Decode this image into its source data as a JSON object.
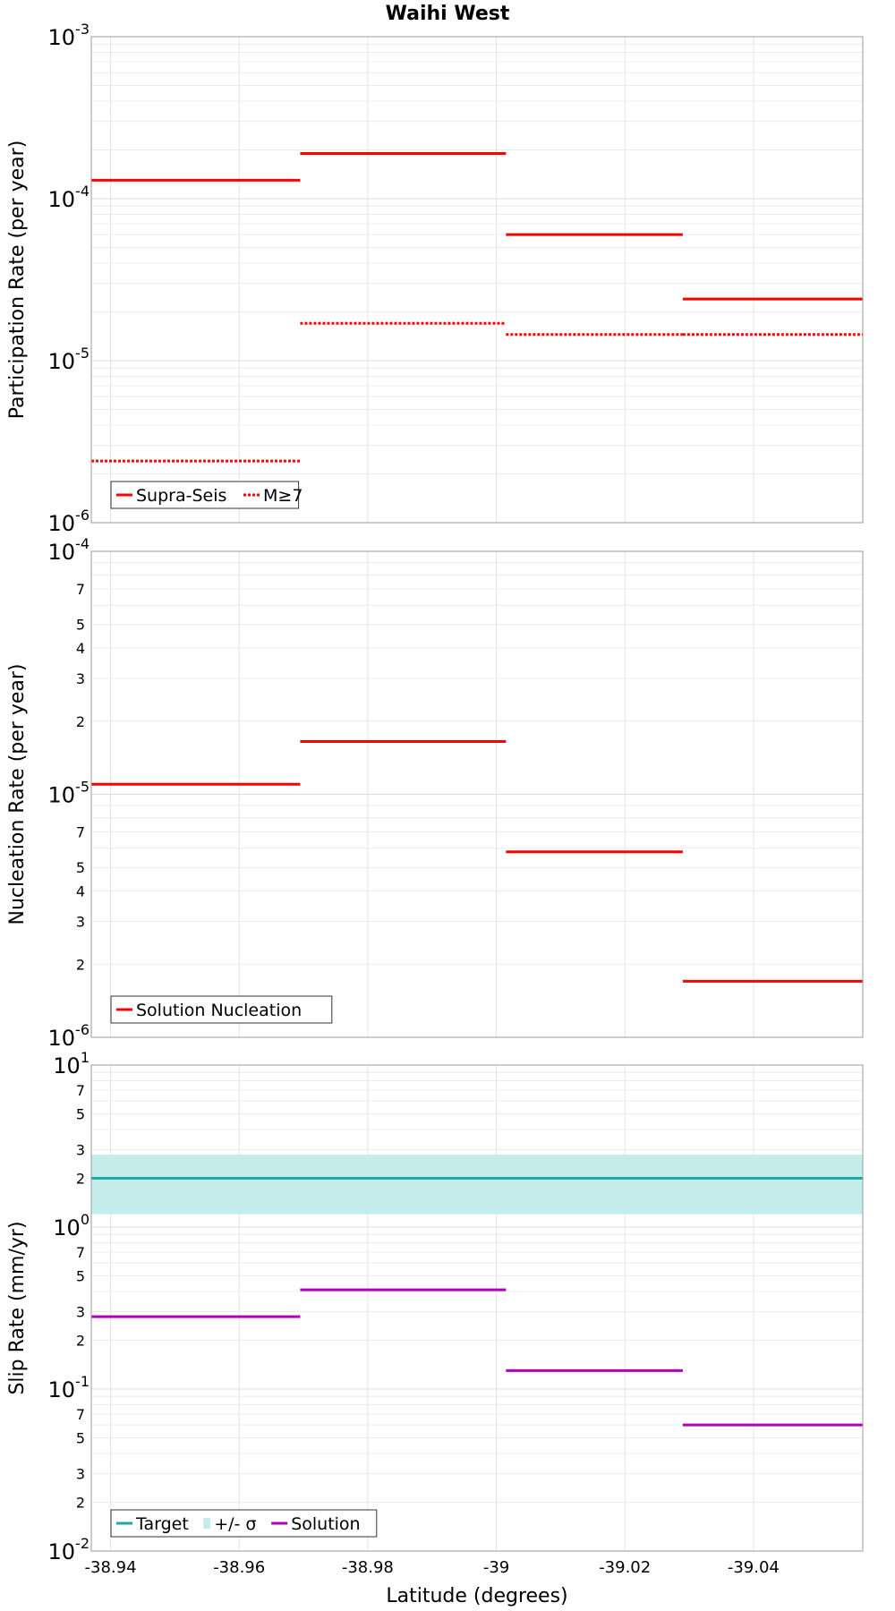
{
  "chart_data": {
    "title": "Waihi West",
    "xlabel": "Latitude (degrees)",
    "xlim": [
      -38.937,
      -39.057
    ],
    "x_ticks": [
      -38.94,
      -38.96,
      -38.98,
      -39.0,
      -39.02,
      -39.04
    ],
    "x_tick_labels": [
      "-38.94",
      "-38.96",
      "-38.98",
      "-39",
      "-39.02",
      "-39.04"
    ],
    "segment_edges": [
      -38.937,
      -38.9695,
      -39.0015,
      -39.029,
      -39.057
    ],
    "panels": [
      {
        "type": "line",
        "ylabel": "Participation Rate (per year)",
        "yscale": "log",
        "ylim": [
          1e-06,
          0.001
        ],
        "major_ticks": [
          {
            "value": 0.001,
            "base": "10",
            "exp": "-3"
          },
          {
            "value": 0.0001,
            "base": "10",
            "exp": "-4"
          },
          {
            "value": 1e-05,
            "base": "10",
            "exp": "-5"
          },
          {
            "value": 1e-06,
            "base": "10",
            "exp": "-6"
          }
        ],
        "minor_labels": [],
        "band": null,
        "series": [
          {
            "name": "Supra-Seis",
            "color": "#ff0000",
            "style": "solid",
            "values": [
              0.00013,
              0.00019,
              6e-05,
              2.4e-05
            ]
          },
          {
            "name": "M≥7",
            "color": "#ff0000",
            "style": "dotted",
            "values": [
              2.4e-06,
              1.7e-05,
              1.45e-05,
              1.45e-05
            ]
          }
        ],
        "legend": [
          {
            "label": "Supra-Seis",
            "kind": "solid",
            "color": "#ff0000"
          },
          {
            "label": "M≥7",
            "kind": "dotted",
            "color": "#ff0000"
          }
        ]
      },
      {
        "type": "line",
        "ylabel": "Nucleation Rate (per year)",
        "yscale": "log",
        "ylim": [
          1e-06,
          0.0001
        ],
        "major_ticks": [
          {
            "value": 0.0001,
            "base": "10",
            "exp": "-4"
          },
          {
            "value": 1e-05,
            "base": "10",
            "exp": "-5"
          },
          {
            "value": 1e-06,
            "base": "10",
            "exp": "-6"
          }
        ],
        "minor_labels": [
          {
            "value": 7e-05,
            "label": "7"
          },
          {
            "value": 5e-05,
            "label": "5"
          },
          {
            "value": 4e-05,
            "label": "4"
          },
          {
            "value": 3e-05,
            "label": "3"
          },
          {
            "value": 2e-05,
            "label": "2"
          },
          {
            "value": 7e-06,
            "label": "7"
          },
          {
            "value": 5e-06,
            "label": "5"
          },
          {
            "value": 4e-06,
            "label": "4"
          },
          {
            "value": 3e-06,
            "label": "3"
          },
          {
            "value": 2e-06,
            "label": "2"
          }
        ],
        "band": null,
        "series": [
          {
            "name": "Solution Nucleation",
            "color": "#ff0000",
            "style": "solid",
            "values": [
              1.1e-05,
              1.65e-05,
              5.8e-06,
              1.7e-06
            ]
          }
        ],
        "legend": [
          {
            "label": "Solution Nucleation",
            "kind": "solid",
            "color": "#ff0000"
          }
        ]
      },
      {
        "type": "line",
        "ylabel": "Slip Rate (mm/yr)",
        "yscale": "log",
        "ylim": [
          0.01,
          10
        ],
        "major_ticks": [
          {
            "value": 10,
            "base": "10",
            "exp": "1"
          },
          {
            "value": 1,
            "base": "10",
            "exp": "0"
          },
          {
            "value": 0.1,
            "base": "10",
            "exp": "-1"
          },
          {
            "value": 0.01,
            "base": "10",
            "exp": "-2"
          }
        ],
        "minor_labels": [
          {
            "value": 7,
            "label": "7"
          },
          {
            "value": 5,
            "label": "5"
          },
          {
            "value": 3,
            "label": "3"
          },
          {
            "value": 2,
            "label": "2"
          },
          {
            "value": 0.7,
            "label": "7"
          },
          {
            "value": 0.5,
            "label": "5"
          },
          {
            "value": 0.3,
            "label": "3"
          },
          {
            "value": 0.2,
            "label": "2"
          },
          {
            "value": 0.07,
            "label": "7"
          },
          {
            "value": 0.05,
            "label": "5"
          },
          {
            "value": 0.03,
            "label": "3"
          },
          {
            "value": 0.02,
            "label": "2"
          }
        ],
        "band": {
          "name": "+/- σ",
          "low": 1.2,
          "high": 2.8,
          "color": "#c4eceb"
        },
        "series": [
          {
            "name": "Target",
            "color": "#1aa8a8",
            "style": "solid",
            "constant": 2.0
          },
          {
            "name": "Solution",
            "color": "#b000b8",
            "style": "solid",
            "values": [
              0.28,
              0.41,
              0.13,
              0.06
            ]
          }
        ],
        "legend": [
          {
            "label": "Target",
            "kind": "solid",
            "color": "#1aa8a8"
          },
          {
            "label": "+/- σ",
            "kind": "band",
            "color": "#c4eceb"
          },
          {
            "label": "Solution",
            "kind": "solid",
            "color": "#b000b8"
          }
        ]
      }
    ]
  }
}
